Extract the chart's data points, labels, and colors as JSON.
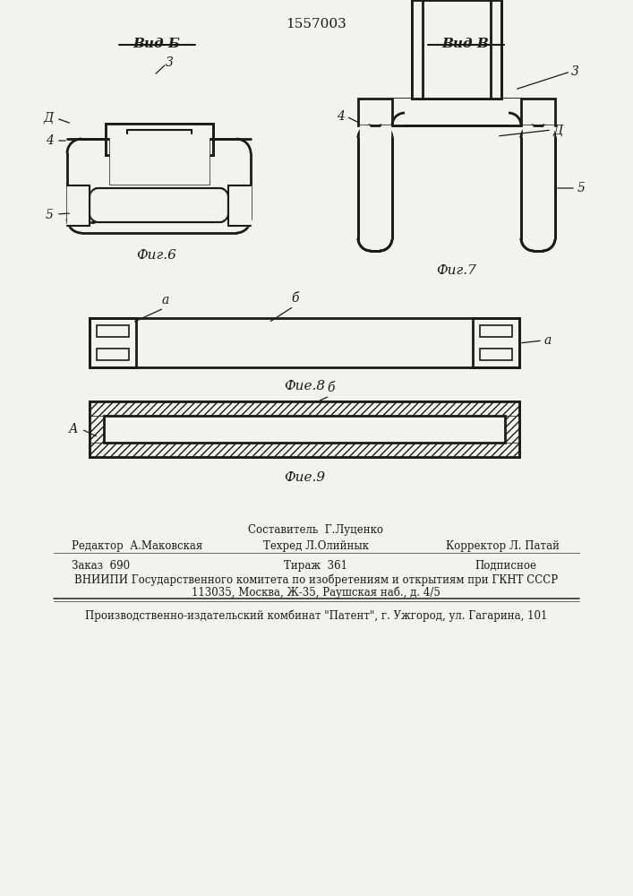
{
  "bg_color": "#f2f2ee",
  "line_color": "#1a1a1a",
  "title_patent": "1557003",
  "fig6_label": "Вид Б",
  "fig7_label": "Вид В",
  "fig6_caption": "Фиг.6",
  "fig7_caption": "Фиг.7",
  "fig8_caption": "Фие.8",
  "fig9_caption": "Фие.9",
  "footer_line1": "Составитель  Г.Луценко",
  "footer_line2_col1": "Редактор  А.Маковская",
  "footer_line2_col2": "Техред Л.Олийнык",
  "footer_line2_col3": "Корректор Л. Патай",
  "footer_line3_col1": "Заказ  690",
  "footer_line3_col2": "Тираж  361",
  "footer_line3_col3": "Подписное",
  "footer_line4": "ВНИИПИ Государственного комитета по изобретениям и открытиям при ГКНТ СССР",
  "footer_line5": "113035, Москва, Ж-35, Раушская наб., д. 4/5",
  "footer_line6": "Производственно-издательский комбинат \"Патент\", г. Ужгород, ул. Гагарина, 101"
}
